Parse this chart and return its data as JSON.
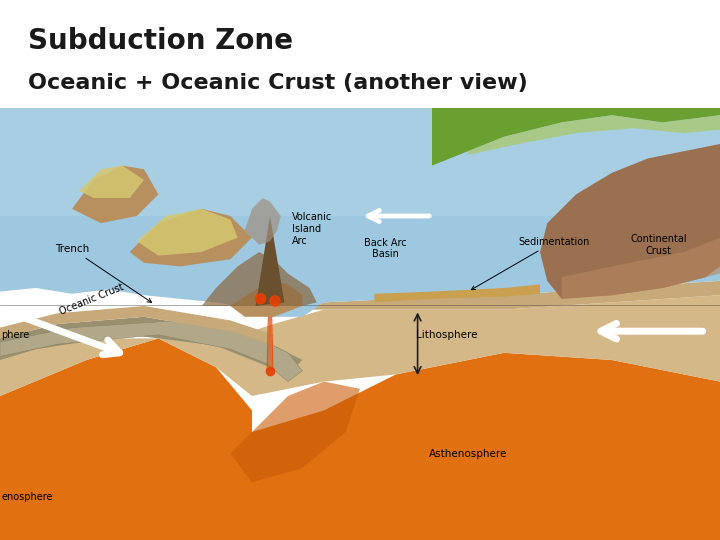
{
  "title_line1": "Subduction Zone",
  "title_line2": "Oceanic + Oceanic Crust (another view)",
  "title_fontsize1": 20,
  "title_fontsize2": 16,
  "title_color": "#1a1a1a",
  "bg_color": "#ffffff",
  "colors": {
    "ocean_blue": "#9ec8e0",
    "ocean_blue2": "#b8d8ea",
    "land_green_dark": "#6aa030",
    "land_green_light": "#a8c860",
    "oceanic_crust_tan": "#c8aa7a",
    "lithosphere_tan": "#d4b888",
    "lithosphere_tan2": "#c8a870",
    "asthenosphere_orange": "#e07010",
    "asthenosphere_orange2": "#c85c08",
    "subducting_slab_gray": "#9a9070",
    "subducting_slab_gray2": "#b0a888",
    "island_yellow_green": "#d4c870",
    "island_brown": "#b89060",
    "island_dark": "#8a6840",
    "volcano_cone": "#6b5030",
    "volcano_ash": "#a09080",
    "magma_orange": "#e84000",
    "magma_red": "#cc2800",
    "sedimentation_tan": "#c8a050",
    "continental_brown": "#9a7050",
    "continental_brown2": "#b88860",
    "trench_line": "#404040",
    "outline": "#606060"
  },
  "labels": {
    "trench": "Trench",
    "volcanic_island_arc": "Volcanic\nIsland\nArc",
    "back_arc_basin": "Back Arc\nBasin",
    "sedimentation": "Sedimentation",
    "oceanic_crust": "Oceanic Crust",
    "continental_crust": "Continental\nCrust",
    "lithosphere": "Lithosphere",
    "asthenosphere": "Asthenosphere",
    "left_sphere": "phere",
    "left_enosphere": "enosphere"
  }
}
